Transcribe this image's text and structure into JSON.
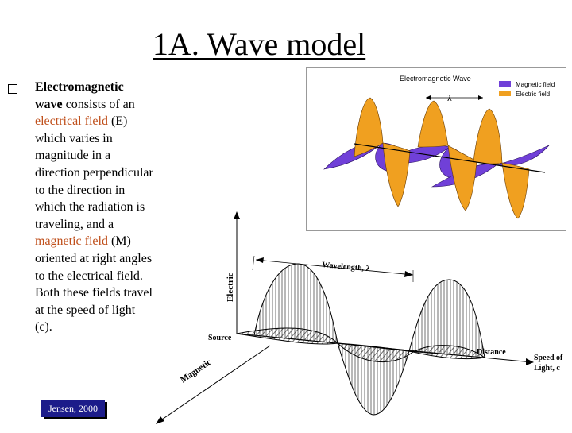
{
  "title": "1A. Wave model",
  "body": {
    "part1": "Electromagnetic wave",
    "part2": " consists of an ",
    "part3": "electrical field",
    "part4": " (E) which varies in magnitude in a direction perpendicular to the direction in which the radiation is traveling, and a ",
    "part5": "magnetic field",
    "part6": " (M) oriented at right angles to the electrical field. Both these fields travel at the speed of light (c)."
  },
  "citation": "Jensen, 2000",
  "diagram_top": {
    "title": "Electromagnetic Wave",
    "legend_magnetic": "Magnetic field",
    "legend_electric": "Electric field",
    "lambda": "λ",
    "colors": {
      "magnetic": "#7040d8",
      "electric": "#f0a020"
    }
  },
  "diagram_bottom": {
    "electric_label": "Electric",
    "wavelength_label": "Wavelength, λ",
    "source_label": "Source",
    "distance_label": "Distance",
    "magnetic_label": "Magnetic",
    "speed_label_1": "Speed of",
    "speed_label_2": "Light, c"
  }
}
